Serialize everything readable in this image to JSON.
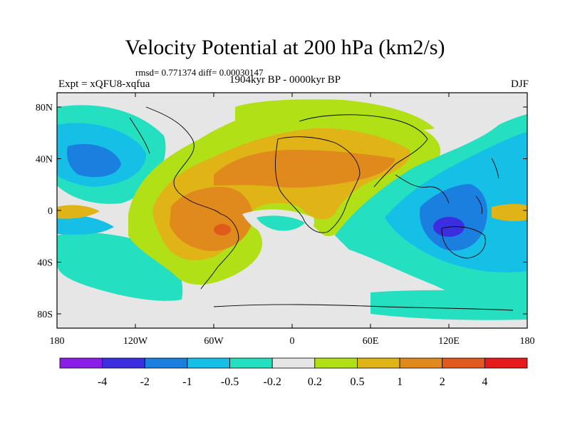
{
  "title": "Velocity Potential at 200 hPa (km2/s)",
  "stats": "rmsd= 0.771374 diff= 0.00030147",
  "experiment": "Expt = xQFU8-xqfua",
  "period": "1904kyr BP - 0000kyr BP",
  "season": "DJF",
  "map": {
    "x_ticks": [
      "180",
      "120W",
      "60W",
      "0",
      "60E",
      "120E",
      "180"
    ],
    "y_ticks": [
      "80N",
      "40N",
      "0",
      "40S",
      "80S"
    ]
  },
  "colorbar": {
    "labels": [
      "-4",
      "-2",
      "-1",
      "-0.5",
      "-0.2",
      "0.2",
      "0.5",
      "1",
      "2",
      "4"
    ],
    "colors": [
      "#8a1ee6",
      "#3a2ee0",
      "#1b7fe0",
      "#16bfe6",
      "#25e0c0",
      "#e6e6e6",
      "#b2e016",
      "#e0b416",
      "#e08a1e",
      "#e05a1e",
      "#e61a1a"
    ]
  },
  "colors": {
    "neutral": "#e6e6e6",
    "coast": "#000000"
  }
}
